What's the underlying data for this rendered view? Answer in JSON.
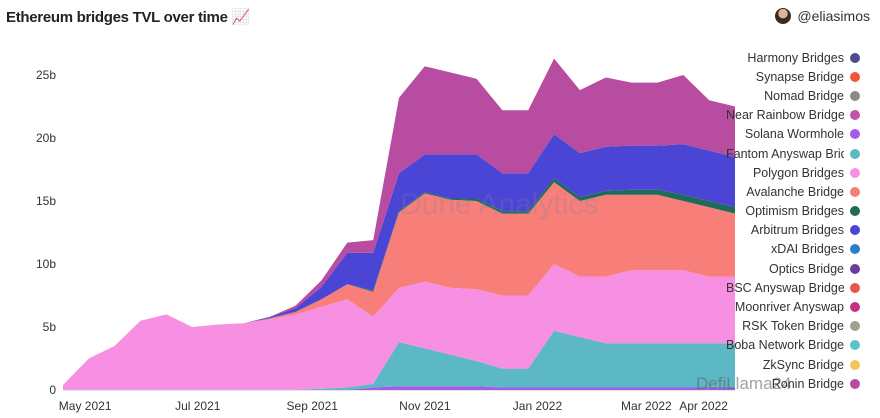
{
  "header": {
    "title": "Ethereum bridges TVL over time 📈",
    "author": "@eliasimos"
  },
  "watermarks": {
    "dune": "Dune Analytics",
    "wechat": "DefiLlama24"
  },
  "chart_data": {
    "type": "area",
    "stacked": true,
    "title": "Ethereum bridges TVL over time",
    "xlabel": "",
    "ylabel": "",
    "ylim": [
      0,
      27
    ],
    "yticks": [
      {
        "v": 0,
        "label": "0"
      },
      {
        "v": 5,
        "label": "5b"
      },
      {
        "v": 10,
        "label": "10b"
      },
      {
        "v": 15,
        "label": "15b"
      },
      {
        "v": 20,
        "label": "20b"
      },
      {
        "v": 25,
        "label": "25b"
      }
    ],
    "xrange": [
      "2021-04-19",
      "2022-04-18"
    ],
    "xticks": [
      {
        "d": "2021-05-01",
        "label": "May 2021"
      },
      {
        "d": "2021-07-01",
        "label": "Jul 2021"
      },
      {
        "d": "2021-09-01",
        "label": "Sep 2021"
      },
      {
        "d": "2021-11-01",
        "label": "Nov 2021"
      },
      {
        "d": "2022-01-01",
        "label": "Jan 2022"
      },
      {
        "d": "2022-03-01",
        "label": "Mar 2022"
      },
      {
        "d": "2022-04-01",
        "label": "Apr 2022"
      }
    ],
    "x": [
      "2021-04-19",
      "2021-05-03",
      "2021-05-17",
      "2021-05-31",
      "2021-06-14",
      "2021-06-28",
      "2021-07-12",
      "2021-07-26",
      "2021-08-09",
      "2021-08-23",
      "2021-09-06",
      "2021-09-20",
      "2021-10-04",
      "2021-10-18",
      "2021-11-01",
      "2021-11-15",
      "2021-11-29",
      "2021-12-13",
      "2021-12-27",
      "2022-01-10",
      "2022-01-24",
      "2022-02-07",
      "2022-02-21",
      "2022-03-07",
      "2022-03-21",
      "2022-04-04",
      "2022-04-18"
    ],
    "series": [
      {
        "name": "Solana Wormhole",
        "color": "#a35be8",
        "values": [
          0,
          0,
          0,
          0,
          0,
          0,
          0,
          0,
          0,
          0,
          0,
          0,
          0.2,
          0.3,
          0.3,
          0.3,
          0.3,
          0.2,
          0.2,
          0.2,
          0.2,
          0.2,
          0.2,
          0.2,
          0.2,
          0.2,
          0.2
        ]
      },
      {
        "name": "Fantom Anyswap Bridge",
        "color": "#5cb8c4",
        "values": [
          0,
          0,
          0,
          0,
          0,
          0,
          0,
          0,
          0,
          0,
          0.1,
          0.2,
          0.3,
          3.5,
          3,
          2.5,
          2,
          1.5,
          1.5,
          4.5,
          4,
          3.5,
          3.5,
          3.5,
          3.5,
          3.5,
          3.5
        ]
      },
      {
        "name": "Polygon Bridges",
        "color": "#f78fe3",
        "values": [
          0.4,
          2.5,
          3.5,
          5.5,
          6,
          5,
          5.2,
          5.3,
          5.6,
          6,
          6.5,
          7,
          5.3,
          4.3,
          5.3,
          5.3,
          5.7,
          5.8,
          5.8,
          5.3,
          4.8,
          5.3,
          5.8,
          5.8,
          5.8,
          5.3,
          5.3
        ]
      },
      {
        "name": "Avalanche Bridge",
        "color": "#f87e7a",
        "values": [
          0,
          0,
          0,
          0,
          0,
          0,
          0,
          0,
          0.1,
          0.2,
          0.6,
          1.2,
          2,
          6,
          7,
          7,
          7,
          6.5,
          6.5,
          6.5,
          6,
          6.5,
          6,
          6,
          5.5,
          5.5,
          5
        ]
      },
      {
        "name": "Optimism Bridges",
        "color": "#1e6b57",
        "values": [
          0,
          0,
          0,
          0,
          0,
          0,
          0,
          0,
          0,
          0,
          0,
          0,
          0.1,
          0.1,
          0.1,
          0.1,
          0.2,
          0.2,
          0.2,
          0.3,
          0.3,
          0.3,
          0.4,
          0.4,
          0.5,
          0.5,
          0.5
        ]
      },
      {
        "name": "Arbitrum Bridges",
        "color": "#4b45d6",
        "values": [
          0,
          0,
          0,
          0,
          0,
          0,
          0,
          0,
          0.1,
          0.3,
          1,
          2.5,
          3,
          3,
          3,
          3.5,
          3.5,
          3,
          3,
          3.5,
          3.5,
          3.5,
          3.5,
          3.5,
          4,
          4,
          4
        ]
      },
      {
        "name": "Ronin Bridge",
        "color": "#b84ca0",
        "values": [
          0,
          0,
          0,
          0,
          0,
          0,
          0,
          0,
          0,
          0.2,
          0.5,
          0.8,
          1,
          6,
          7,
          6.5,
          6,
          5,
          5,
          6,
          5,
          5.5,
          5,
          5,
          5.5,
          4,
          4
        ]
      }
    ],
    "legend": {
      "placement": "right",
      "items": [
        {
          "name": "Harmony Bridges",
          "color": "#4b4d8c"
        },
        {
          "name": "Synapse Bridge",
          "color": "#f2553a"
        },
        {
          "name": "Nomad Bridge",
          "color": "#8a8a8a"
        },
        {
          "name": "Near Rainbow Bridge",
          "color": "#c454a8"
        },
        {
          "name": "Solana Wormhole",
          "color": "#a35be8"
        },
        {
          "name": "Fantom Anyswap Bridge",
          "color": "#5cb8c4"
        },
        {
          "name": "Polygon Bridges",
          "color": "#f78fe3"
        },
        {
          "name": "Avalanche Bridge",
          "color": "#f87e7a"
        },
        {
          "name": "Optimism Bridges",
          "color": "#1e6b57"
        },
        {
          "name": "Arbitrum Bridges",
          "color": "#4b45d6"
        },
        {
          "name": "xDAI Bridges",
          "color": "#2a7fc9"
        },
        {
          "name": "Optics Bridge",
          "color": "#6a3d9a"
        },
        {
          "name": "BSC Anyswap Bridge",
          "color": "#e8554e"
        },
        {
          "name": "Moonriver Anyswap",
          "color": "#c6307e"
        },
        {
          "name": "RSK Token Bridge",
          "color": "#a0a08e"
        },
        {
          "name": "Boba Network Bridge",
          "color": "#5cc4c8"
        },
        {
          "name": "ZkSync Bridge",
          "color": "#f5c55c"
        },
        {
          "name": "Ronin Bridge",
          "color": "#b84ca0"
        }
      ]
    },
    "grid": false
  }
}
